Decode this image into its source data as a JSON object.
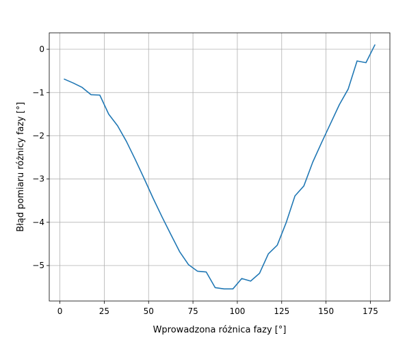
{
  "chart_data": {
    "type": "line",
    "title": "",
    "xlabel": "Wprowadzona różnica fazy [°]",
    "ylabel": "Błąd pomiaru różnicy fazy [°]",
    "xlim": [
      -6,
      186
    ],
    "ylim": [
      -5.82,
      0.38
    ],
    "xticks": [
      0,
      25,
      50,
      75,
      100,
      125,
      150,
      175
    ],
    "yticks": [
      0,
      -1,
      -2,
      -3,
      -4,
      -5
    ],
    "xtick_labels": [
      "0",
      "25",
      "50",
      "75",
      "100",
      "125",
      "150",
      "175"
    ],
    "ytick_labels": [
      "0",
      "−1",
      "−2",
      "−3",
      "−4",
      "−5"
    ],
    "grid": true,
    "series": [
      {
        "color": "#1f77b4",
        "x": [
          2.5,
          7.5,
          12.5,
          17.5,
          22.5,
          27.5,
          32.5,
          37.5,
          42.5,
          47.5,
          52.5,
          57.5,
          62.5,
          67.5,
          72.5,
          77.5,
          82.5,
          87.5,
          92.5,
          97.5,
          102.5,
          107.5,
          112.5,
          117.5,
          122.5,
          127.5,
          132.5,
          137.5,
          142.5,
          147.5,
          152.5,
          157.5,
          162.5,
          167.5,
          172.5,
          177.5
        ],
        "y": [
          -0.69,
          -0.78,
          -0.88,
          -1.05,
          -1.06,
          -1.5,
          -1.77,
          -2.13,
          -2.55,
          -2.99,
          -3.44,
          -3.87,
          -4.28,
          -4.68,
          -4.98,
          -5.13,
          -5.15,
          -5.51,
          -5.54,
          -5.54,
          -5.3,
          -5.36,
          -5.18,
          -4.73,
          -4.53,
          -4.01,
          -3.39,
          -3.16,
          -2.61,
          -2.16,
          -1.72,
          -1.28,
          -0.92,
          -0.27,
          -0.31,
          0.1
        ]
      }
    ]
  }
}
